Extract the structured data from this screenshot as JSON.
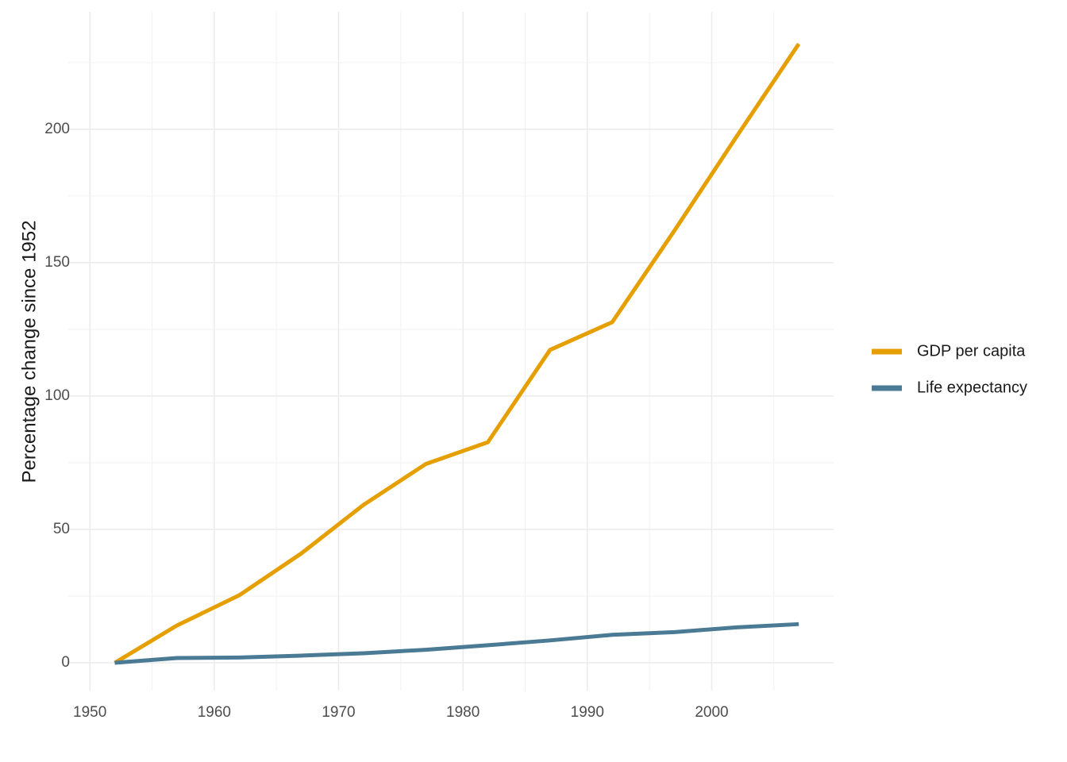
{
  "chart_data": {
    "type": "line",
    "y_label": "Percentage change since 1952",
    "x": [
      1952,
      1957,
      1962,
      1967,
      1972,
      1977,
      1982,
      1987,
      1992,
      1997,
      2002,
      2007
    ],
    "series": [
      {
        "name": "GDP per capita",
        "color": "#e69f00",
        "values": [
          0,
          14,
          25.3,
          41,
          59.2,
          74.5,
          82.7,
          117.3,
          127.7,
          162,
          197.3,
          232
        ]
      },
      {
        "name": "Life expectancy",
        "color": "#4a7a94",
        "values": [
          0,
          1.8,
          2,
          2.7,
          3.6,
          4.9,
          6.6,
          8.4,
          10.5,
          11.5,
          13.3,
          14.5
        ]
      }
    ],
    "xlim": [
      1948.2,
      2009.8
    ],
    "xticks": [
      1950,
      1960,
      1970,
      1980,
      1990,
      2000
    ],
    "ylim": [
      -10.4,
      244
    ],
    "yticks": [
      0,
      50,
      100,
      150,
      200
    ],
    "grid": true,
    "legend": "right"
  }
}
